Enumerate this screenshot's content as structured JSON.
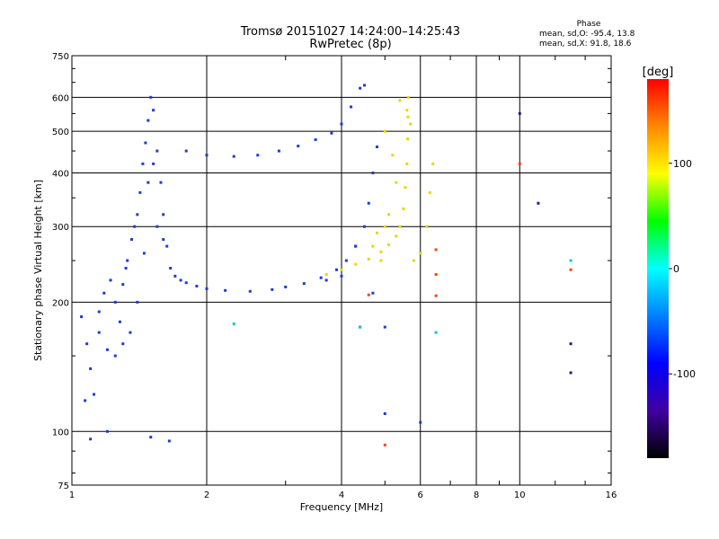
{
  "chart_data": {
    "type": "scatter",
    "title": "Tromsø 20151027 14:24:00–14:25:43",
    "subtitle": "RwPretec (8p)",
    "xlabel": "Frequency [MHz]",
    "ylabel": "Stationary phase Virtual Height [km]",
    "x_scale": "log",
    "y_scale": "log",
    "xlim": [
      1,
      16
    ],
    "ylim": [
      75,
      750
    ],
    "x_ticks": [
      1,
      2,
      4,
      6,
      8,
      10,
      16
    ],
    "y_ticks": [
      75,
      100,
      200,
      300,
      400,
      500,
      600,
      750
    ],
    "grid": true,
    "phase_box": {
      "heading": "Phase",
      "line_o": "mean, sd,O: -95.4, 13.8",
      "line_x": "mean, sd,X:  91.8, 18.6"
    },
    "colorbar": {
      "label": "[deg]",
      "ticks": [
        100,
        0,
        -100
      ],
      "range": [
        -180,
        180
      ],
      "colors_top_to_bottom": [
        "#ff0000",
        "#ff8800",
        "#ffff00",
        "#00ff00",
        "#00ffff",
        "#0080ff",
        "#0000ff",
        "#4000a0",
        "#000000"
      ]
    },
    "series": [
      {
        "mode": "O",
        "phase_mean": -95.4,
        "color": "#1f3bd6",
        "points": [
          [
            1.05,
            185
          ],
          [
            1.08,
            160
          ],
          [
            1.1,
            140
          ],
          [
            1.12,
            122
          ],
          [
            1.07,
            118
          ],
          [
            1.1,
            96
          ],
          [
            1.2,
            100
          ],
          [
            1.15,
            190
          ],
          [
            1.18,
            210
          ],
          [
            1.22,
            225
          ],
          [
            1.25,
            200
          ],
          [
            1.28,
            180
          ],
          [
            1.3,
            220
          ],
          [
            1.33,
            250
          ],
          [
            1.36,
            280
          ],
          [
            1.4,
            320
          ],
          [
            1.42,
            360
          ],
          [
            1.44,
            420
          ],
          [
            1.46,
            470
          ],
          [
            1.48,
            530
          ],
          [
            1.5,
            600
          ],
          [
            1.52,
            560
          ],
          [
            1.55,
            450
          ],
          [
            1.58,
            380
          ],
          [
            1.6,
            320
          ],
          [
            1.63,
            270
          ],
          [
            1.66,
            240
          ],
          [
            1.7,
            230
          ],
          [
            1.75,
            225
          ],
          [
            1.8,
            222
          ],
          [
            1.9,
            218
          ],
          [
            2.0,
            215
          ],
          [
            2.2,
            213
          ],
          [
            2.5,
            212
          ],
          [
            2.8,
            214
          ],
          [
            3.0,
            217
          ],
          [
            3.3,
            221
          ],
          [
            3.6,
            228
          ],
          [
            3.9,
            238
          ],
          [
            4.1,
            250
          ],
          [
            4.3,
            270
          ],
          [
            4.5,
            300
          ],
          [
            4.6,
            340
          ],
          [
            4.7,
            400
          ],
          [
            4.8,
            460
          ],
          [
            1.8,
            450
          ],
          [
            2.0,
            440
          ],
          [
            2.3,
            437
          ],
          [
            2.6,
            440
          ],
          [
            2.9,
            450
          ],
          [
            3.2,
            462
          ],
          [
            3.5,
            478
          ],
          [
            3.8,
            495
          ],
          [
            4.0,
            520
          ],
          [
            4.2,
            570
          ],
          [
            4.4,
            630
          ],
          [
            4.5,
            640
          ],
          [
            1.35,
            170
          ],
          [
            1.3,
            160
          ],
          [
            1.25,
            150
          ],
          [
            1.2,
            155
          ],
          [
            1.4,
            200
          ],
          [
            1.45,
            260
          ],
          [
            1.38,
            300
          ],
          [
            1.32,
            240
          ],
          [
            1.55,
            300
          ],
          [
            1.6,
            280
          ],
          [
            1.48,
            380
          ],
          [
            1.52,
            420
          ],
          [
            1.15,
            170
          ],
          [
            5.0,
            110
          ],
          [
            6.0,
            105
          ],
          [
            5.0,
            175
          ],
          [
            4.4,
            175
          ],
          [
            1.5,
            97
          ],
          [
            1.65,
            95
          ],
          [
            4.7,
            210
          ],
          [
            4.3,
            270
          ],
          [
            4.0,
            230
          ],
          [
            3.7,
            225
          ]
        ]
      },
      {
        "mode": "X",
        "phase_mean": 91.8,
        "color": "#e6d800",
        "points": [
          [
            3.7,
            232
          ],
          [
            4.0,
            238
          ],
          [
            4.3,
            245
          ],
          [
            4.6,
            252
          ],
          [
            4.9,
            262
          ],
          [
            5.1,
            272
          ],
          [
            5.3,
            285
          ],
          [
            5.4,
            300
          ],
          [
            5.5,
            330
          ],
          [
            5.55,
            370
          ],
          [
            5.6,
            420
          ],
          [
            5.62,
            480
          ],
          [
            5.63,
            540
          ],
          [
            5.64,
            600
          ],
          [
            5.2,
            440
          ],
          [
            5.3,
            380
          ],
          [
            5.1,
            320
          ],
          [
            5.0,
            300
          ],
          [
            4.8,
            290
          ],
          [
            4.7,
            270
          ],
          [
            5.8,
            250
          ],
          [
            6.0,
            260
          ],
          [
            6.2,
            300
          ],
          [
            6.3,
            360
          ],
          [
            6.4,
            420
          ],
          [
            5.7,
            520
          ],
          [
            5.6,
            560
          ],
          [
            5.4,
            590
          ],
          [
            4.9,
            250
          ],
          [
            5.0,
            500
          ]
        ]
      },
      {
        "mode": "other",
        "color": "#ff4400",
        "points": [
          [
            6.5,
            265
          ],
          [
            6.5,
            232
          ],
          [
            6.5,
            207
          ],
          [
            10.0,
            420
          ],
          [
            13.0,
            238
          ],
          [
            5.0,
            93
          ],
          [
            4.6,
            208
          ]
        ]
      },
      {
        "mode": "other",
        "color": "#00cccc",
        "points": [
          [
            2.3,
            178
          ],
          [
            4.4,
            175
          ],
          [
            6.5,
            170
          ],
          [
            13.0,
            250
          ]
        ]
      },
      {
        "mode": "other",
        "color": "#2a1a7a",
        "points": [
          [
            13.0,
            160
          ],
          [
            13.0,
            137
          ],
          [
            10.0,
            550
          ],
          [
            11.0,
            340
          ]
        ]
      }
    ]
  }
}
